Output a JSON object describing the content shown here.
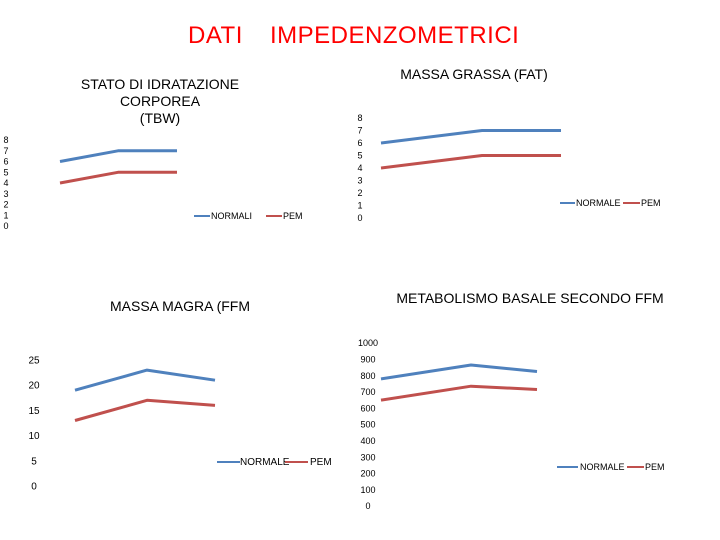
{
  "header": {
    "title_left": "DATI",
    "title_right": "IMPEDENZOMETRICI",
    "title_color": "#ff0000"
  },
  "colors": {
    "normal": "#4f81bd",
    "pem": "#c0504d"
  },
  "chart_data": [
    {
      "type": "line",
      "title": "STATO DI IDRATAZIONE CORPOREA (TBW)",
      "title_line1": "STATO DI IDRATAZIONE CORPOREA",
      "title_line2": "(TBW)",
      "categories": [
        "",
        "",
        ""
      ],
      "ylim": [
        0,
        8
      ],
      "yticks": [
        "0",
        "1",
        "2",
        "3",
        "4",
        "5",
        "6",
        "7",
        "8"
      ],
      "series": [
        {
          "name": "NORMALI",
          "values": [
            6,
            7,
            7
          ]
        },
        {
          "name": "PEM",
          "values": [
            4,
            5,
            5
          ]
        }
      ],
      "legend": "bottom-right"
    },
    {
      "type": "line",
      "title": "MASSA GRASSA (FAT)",
      "categories": [
        "",
        "",
        ""
      ],
      "ylim": [
        0,
        8
      ],
      "yticks": [
        "0",
        "1",
        "2",
        "3",
        "4",
        "5",
        "6",
        "7",
        "8"
      ],
      "series": [
        {
          "name": "NORMALE",
          "values": [
            6,
            7,
            7
          ]
        },
        {
          "name": "PEM",
          "values": [
            4,
            5,
            5
          ]
        }
      ],
      "legend": "bottom-right"
    },
    {
      "type": "line",
      "title": "MASSA MAGRA (FFM",
      "categories": [
        "",
        "",
        ""
      ],
      "ylim": [
        0,
        25
      ],
      "yticks": [
        "0",
        "5",
        "10",
        "15",
        "20",
        "25"
      ],
      "series": [
        {
          "name": "NORMALE",
          "values": [
            19,
            23,
            21
          ]
        },
        {
          "name": "PEM",
          "values": [
            13,
            17,
            16
          ]
        }
      ],
      "legend": "bottom-right"
    },
    {
      "type": "line",
      "title": "METABOLISMO BASALE SECONDO FFM",
      "categories": [
        "",
        "",
        ""
      ],
      "ylim": [
        0,
        1000
      ],
      "yticks": [
        "0",
        "100",
        "200",
        "300",
        "400",
        "500",
        "600",
        "700",
        "800",
        "900",
        "1000"
      ],
      "series": [
        {
          "name": "NORMALE",
          "values": [
            780,
            865,
            825
          ]
        },
        {
          "name": "PEM",
          "values": [
            650,
            735,
            715
          ]
        }
      ],
      "legend": "bottom-right"
    }
  ]
}
